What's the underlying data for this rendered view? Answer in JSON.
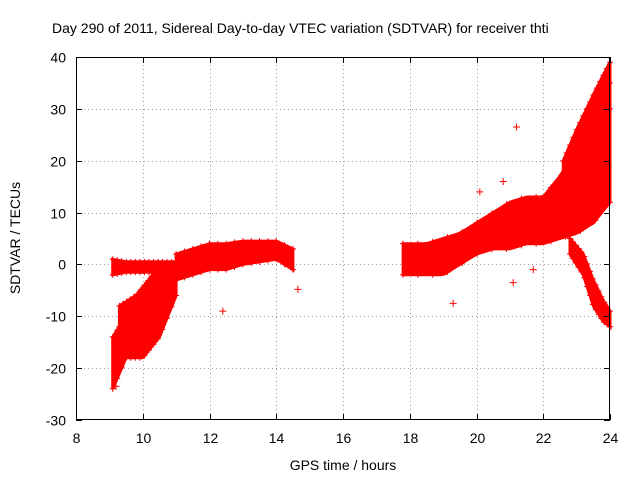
{
  "chart_data": {
    "type": "scatter",
    "title": "Day 290 of 2011, Sidereal Day-to-day VTEC variation (SDTVAR) for receiver thti",
    "xlabel": "GPS time / hours",
    "ylabel": "SDTVAR / TECUs",
    "xlim": [
      8,
      24
    ],
    "ylim": [
      -30,
      40
    ],
    "xticks": [
      8,
      10,
      12,
      14,
      16,
      18,
      20,
      22,
      24
    ],
    "yticks": [
      -30,
      -20,
      -10,
      0,
      10,
      20,
      30,
      40
    ],
    "grid": true,
    "marker": "+",
    "color": "#ff0000",
    "bands": [
      {
        "name": "early-upper",
        "x": [
          9.1,
          9.5,
          10.0,
          10.5,
          11.0
        ],
        "ymin": [
          -2,
          -1.5,
          -1.5,
          -1.5,
          -1.5
        ],
        "ymax": [
          1,
          0.5,
          0.5,
          0.5,
          0.5
        ]
      },
      {
        "name": "early-lower",
        "x": [
          9.1,
          9.5,
          10.0,
          10.5,
          11.0
        ],
        "ymin": [
          -24,
          -18,
          -18,
          -14,
          -6
        ],
        "ymax": [
          -14,
          -10,
          -8,
          -4,
          0
        ]
      },
      {
        "name": "early-loop",
        "x": [
          9.3,
          9.8,
          10.3,
          10.8
        ],
        "ymin": [
          -12,
          -9,
          -6,
          -4
        ],
        "ymax": [
          -8,
          -6,
          -2,
          -1
        ]
      },
      {
        "name": "mid-arc",
        "x": [
          11.0,
          11.5,
          12.0,
          12.5,
          13.0,
          13.5,
          14.0,
          14.5
        ],
        "ymin": [
          -3,
          -2,
          -1,
          -1,
          0,
          0.5,
          1,
          -1
        ],
        "ymax": [
          2,
          3,
          4,
          4,
          4.5,
          4.5,
          4.5,
          3
        ]
      },
      {
        "name": "late-main",
        "x": [
          17.8,
          18.5,
          19.0,
          19.5,
          20.0,
          20.5,
          21.0,
          21.5,
          22.0,
          22.5,
          23.0,
          23.5,
          24.0
        ],
        "ymin": [
          -2,
          -2,
          -2,
          0,
          2,
          3,
          3,
          4,
          4,
          5,
          6,
          8,
          12
        ],
        "ymax": [
          4,
          4,
          5,
          6,
          8,
          10,
          12,
          13,
          13,
          17,
          22,
          28,
          35
        ]
      },
      {
        "name": "late-upper-fan",
        "x": [
          22.6,
          23.0,
          23.3,
          23.6,
          24.0
        ],
        "ymin": [
          14,
          18,
          22,
          26,
          30
        ],
        "ymax": [
          20,
          26,
          30,
          34,
          39
        ]
      },
      {
        "name": "late-descent",
        "x": [
          22.8,
          23.2,
          23.5,
          23.8,
          24.0
        ],
        "ymin": [
          2,
          -2,
          -8,
          -11,
          -12
        ],
        "ymax": [
          5,
          2,
          -3,
          -7,
          -9
        ]
      }
    ],
    "outliers": [
      {
        "x": 21.2,
        "y": 26.5
      },
      {
        "x": 14.65,
        "y": -4.8
      },
      {
        "x": 12.4,
        "y": -9
      },
      {
        "x": 9.2,
        "y": -23.5
      },
      {
        "x": 19.3,
        "y": -7.5
      },
      {
        "x": 21.1,
        "y": -3.5
      },
      {
        "x": 20.8,
        "y": 16
      },
      {
        "x": 20.1,
        "y": 14
      },
      {
        "x": 21.7,
        "y": -1
      }
    ]
  }
}
